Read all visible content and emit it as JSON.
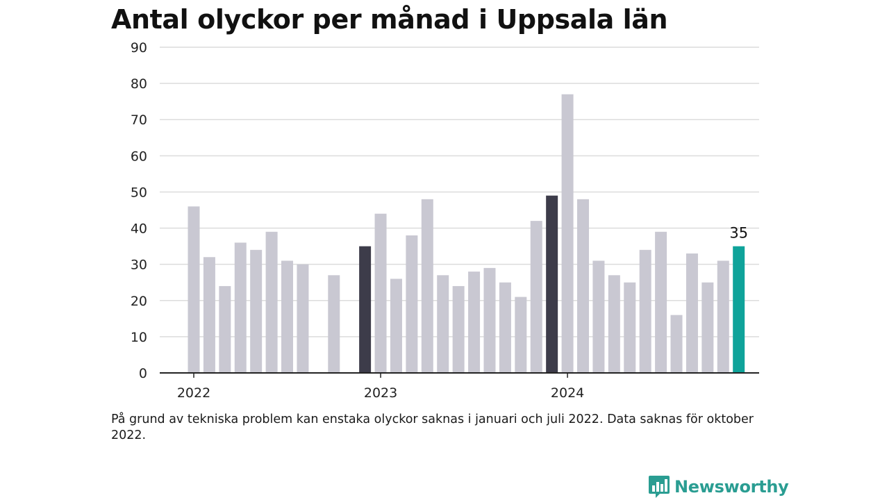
{
  "title": "Antal olyckor per månad i Uppsala län",
  "note": "På grund av tekniska problem kan enstaka olyckor saknas i januari och juli 2022. Data saknas för oktober 2022.",
  "brand": {
    "name": "Newsworthy",
    "logo_icon": "bar-chart-speech-bubble-icon",
    "color": "#2a9d92"
  },
  "colors": {
    "default": "#c9c8d2",
    "january": "#3d3c4a",
    "latest": "#0fa39a",
    "grid": "#dcdcdc",
    "axis": "#222222"
  },
  "chart_data": {
    "type": "bar",
    "ylim": [
      0,
      90
    ],
    "yticks": [
      0,
      10,
      20,
      30,
      40,
      50,
      60,
      70,
      80,
      90
    ],
    "xtick_labels": [
      "2022",
      "2023",
      "2024"
    ],
    "grid": true,
    "highlight_label": "35",
    "series": [
      {
        "values": [
          {
            "month": "2022-02",
            "value": 46
          },
          {
            "month": "2022-03",
            "value": 32
          },
          {
            "month": "2022-04",
            "value": 24
          },
          {
            "month": "2022-05",
            "value": 36
          },
          {
            "month": "2022-06",
            "value": 34
          },
          {
            "month": "2022-07",
            "value": 39
          },
          {
            "month": "2022-08",
            "value": 31
          },
          {
            "month": "2022-09",
            "value": 30
          },
          {
            "month": "2022-11",
            "value": 27
          },
          {
            "month": "2023-01",
            "value": 35
          },
          {
            "month": "2023-02",
            "value": 44
          },
          {
            "month": "2023-03",
            "value": 26
          },
          {
            "month": "2023-04",
            "value": 38
          },
          {
            "month": "2023-05",
            "value": 48
          },
          {
            "month": "2023-06",
            "value": 27
          },
          {
            "month": "2023-07",
            "value": 24
          },
          {
            "month": "2023-08",
            "value": 28
          },
          {
            "month": "2023-09",
            "value": 29
          },
          {
            "month": "2023-10",
            "value": 25
          },
          {
            "month": "2023-11",
            "value": 21
          },
          {
            "month": "2023-12",
            "value": 42
          },
          {
            "month": "2024-01",
            "value": 49
          },
          {
            "month": "2024-02",
            "value": 77
          },
          {
            "month": "2024-03",
            "value": 48
          },
          {
            "month": "2024-04",
            "value": 31
          },
          {
            "month": "2024-05",
            "value": 27
          },
          {
            "month": "2024-06",
            "value": 25
          },
          {
            "month": "2024-07",
            "value": 34
          },
          {
            "month": "2024-08",
            "value": 39
          },
          {
            "month": "2024-09",
            "value": 16
          },
          {
            "month": "2024-10",
            "value": 33
          },
          {
            "month": "2024-11",
            "value": 25
          },
          {
            "month": "2024-12",
            "value": 31
          },
          {
            "month": "2025-01",
            "value": 35
          }
        ]
      }
    ]
  }
}
